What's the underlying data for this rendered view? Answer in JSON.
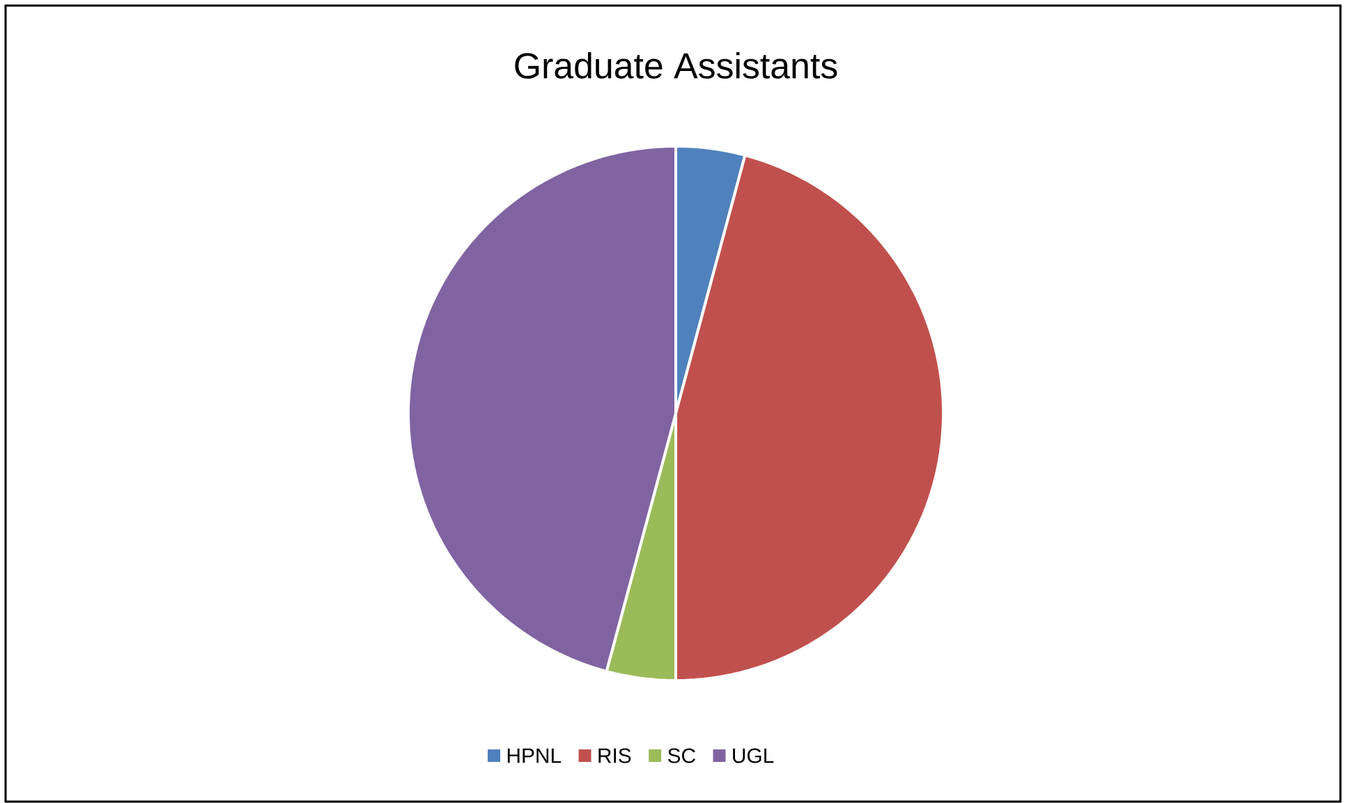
{
  "chart_data": {
    "type": "pie",
    "title": "Graduate Assistants",
    "categories": [
      "HPNL",
      "RIS",
      "SC",
      "UGL"
    ],
    "values": [
      4.17,
      45.83,
      4.17,
      45.83
    ],
    "colors": [
      "#4f81bd",
      "#c0504d",
      "#9bbb59",
      "#8064a2"
    ],
    "legend": "bottom"
  }
}
